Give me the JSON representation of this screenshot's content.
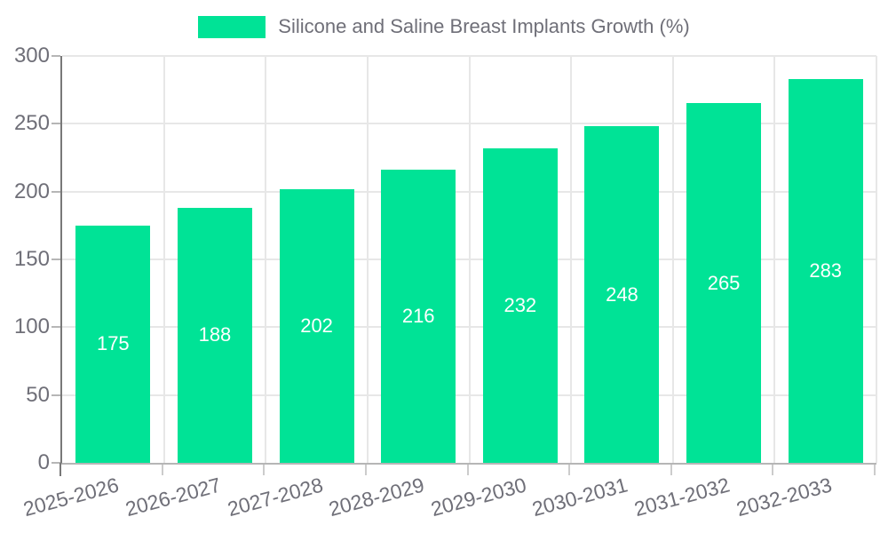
{
  "chart_data": {
    "type": "bar",
    "title": "Silicone and Saline Breast Implants Growth (%)",
    "categories": [
      "2025-2026",
      "2026-2027",
      "2027-2028",
      "2028-2029",
      "2029-2030",
      "2030-2031",
      "2031-2032",
      "2032-2033"
    ],
    "values": [
      175,
      188,
      202,
      216,
      232,
      248,
      265,
      283
    ],
    "xlabel": "",
    "ylabel": "",
    "ylim": [
      0,
      300
    ],
    "y_ticks": [
      0,
      50,
      100,
      150,
      200,
      250,
      300
    ],
    "grid": true,
    "legend_position": "top",
    "colors": {
      "bar": "#00E396",
      "data_label": "#ffffff",
      "axis_text": "#6f6f78",
      "grid_line": "#e7e7e7",
      "y_axis_line": "#787878",
      "x_axis_line": "#b6b6b6"
    }
  }
}
